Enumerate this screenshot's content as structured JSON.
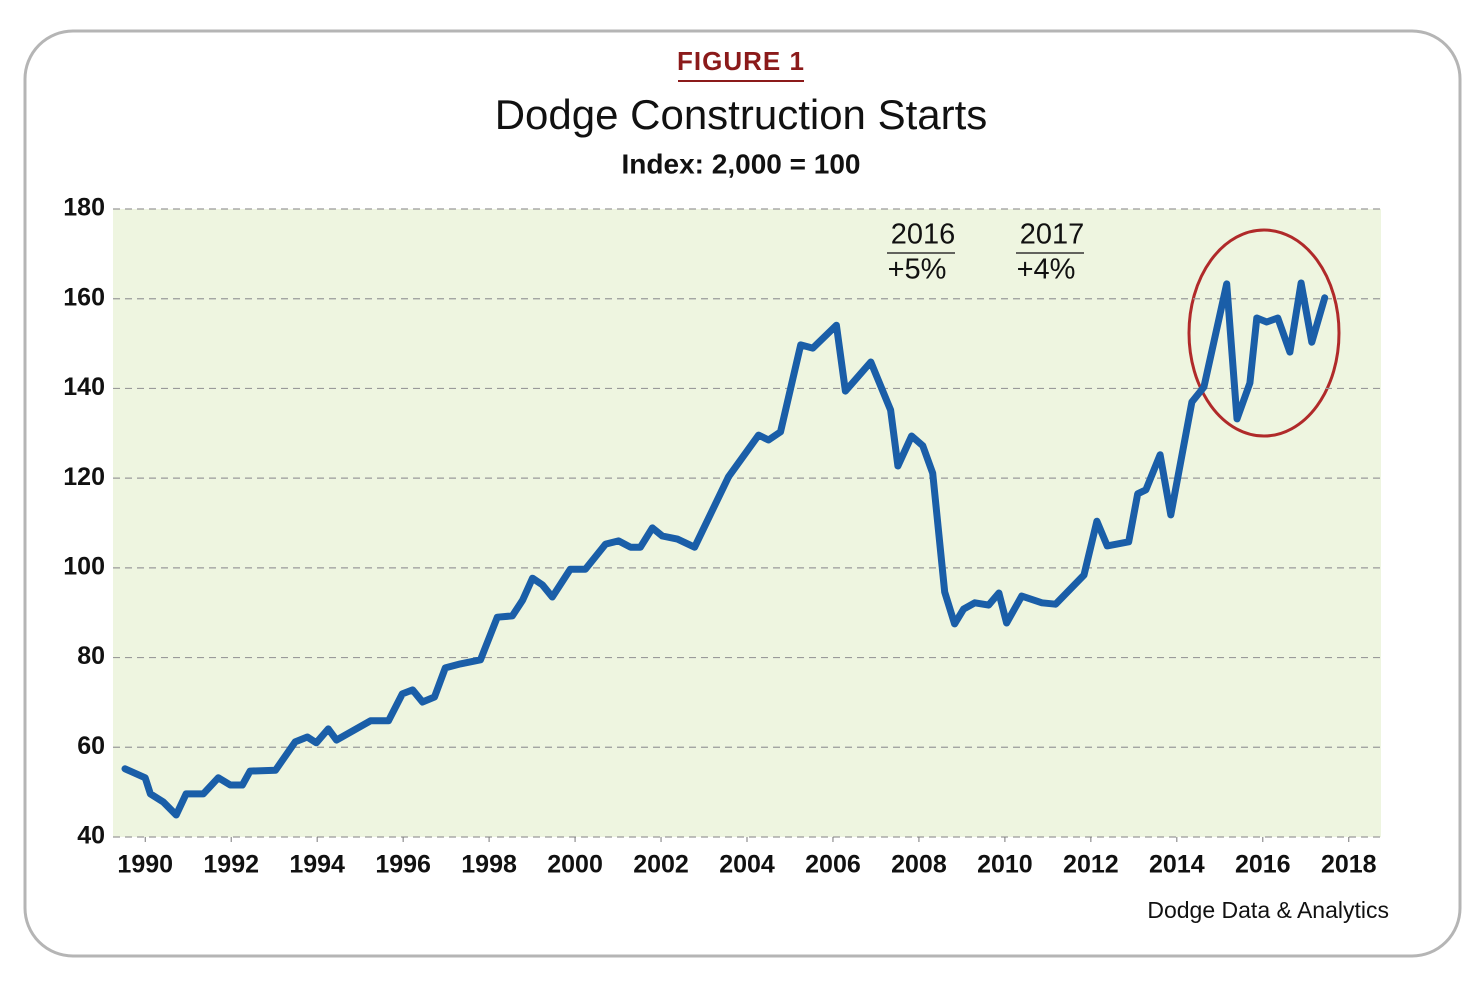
{
  "chart_data": {
    "type": "line",
    "figure_label": "FIGURE 1",
    "title": "Dodge Construction Starts",
    "subtitle": "Index: 2,000 = 100",
    "source": "Dodge Data & Analytics",
    "annotations": [
      {
        "year": "2016",
        "change": "+5%"
      },
      {
        "year": "2017",
        "change": "+4%"
      }
    ],
    "color": "#1a5ea8",
    "grid": true,
    "xlim": [
      1989.25,
      2018.75
    ],
    "xticks": [
      1990,
      1992,
      1994,
      1996,
      1998,
      2000,
      2002,
      2004,
      2006,
      2008,
      2010,
      2012,
      2014,
      2016,
      2018
    ],
    "ylim": [
      40,
      180
    ],
    "yticks": [
      40,
      60,
      80,
      100,
      120,
      140,
      160,
      180
    ],
    "x": [
      1989.53,
      1990.0,
      1990.12,
      1990.42,
      1990.72,
      1990.95,
      1991.35,
      1991.7,
      1991.98,
      1992.26,
      1992.44,
      1993.03,
      1993.49,
      1993.77,
      1993.98,
      1994.26,
      1994.45,
      1995.24,
      1995.66,
      1995.98,
      1996.22,
      1996.45,
      1996.73,
      1996.98,
      1997.33,
      1997.8,
      1998.19,
      1998.54,
      1998.78,
      1999.01,
      1999.24,
      1999.47,
      1999.89,
      2000.24,
      2000.71,
      2001.01,
      2001.29,
      2001.52,
      2001.8,
      2002.03,
      2002.38,
      2002.78,
      2003.57,
      2004.27,
      2004.5,
      2004.78,
      2005.25,
      2005.53,
      2006.08,
      2006.29,
      2006.88,
      2007.34,
      2007.51,
      2007.83,
      2008.09,
      2008.32,
      2008.6,
      2008.83,
      2009.04,
      2009.3,
      2009.62,
      2009.86,
      2010.04,
      2010.39,
      2010.86,
      2011.18,
      2011.84,
      2012.14,
      2012.38,
      2012.88,
      2013.09,
      2013.28,
      2013.61,
      2013.86,
      2014.35,
      2014.63,
      2015.16,
      2015.4,
      2015.7,
      2015.86,
      2016.09,
      2016.35,
      2016.63,
      2016.89,
      2017.14,
      2017.44
    ],
    "values": [
      55.2,
      53.2,
      49.6,
      47.8,
      44.9,
      49.6,
      49.6,
      53.2,
      51.6,
      51.6,
      54.7,
      54.9,
      61.2,
      62.3,
      61.0,
      64.1,
      61.6,
      65.9,
      65.9,
      71.9,
      72.8,
      70.1,
      71.2,
      77.7,
      78.6,
      79.5,
      89.0,
      89.3,
      92.8,
      97.7,
      96.2,
      93.5,
      99.7,
      99.7,
      105.3,
      106.0,
      104.6,
      104.6,
      108.9,
      107.1,
      106.4,
      104.6,
      120.3,
      129.6,
      128.5,
      130.3,
      149.7,
      149.0,
      154.1,
      139.4,
      145.9,
      135.2,
      122.7,
      129.4,
      127.2,
      121.1,
      94.6,
      87.5,
      90.8,
      92.2,
      91.7,
      94.4,
      87.7,
      93.7,
      92.2,
      91.9,
      98.4,
      110.4,
      104.9,
      105.8,
      116.5,
      117.4,
      125.2,
      111.8,
      137.0,
      140.3,
      163.3,
      133.2,
      141.2,
      155.7,
      154.8,
      155.7,
      148.1,
      163.5,
      150.3,
      160.2
    ]
  }
}
